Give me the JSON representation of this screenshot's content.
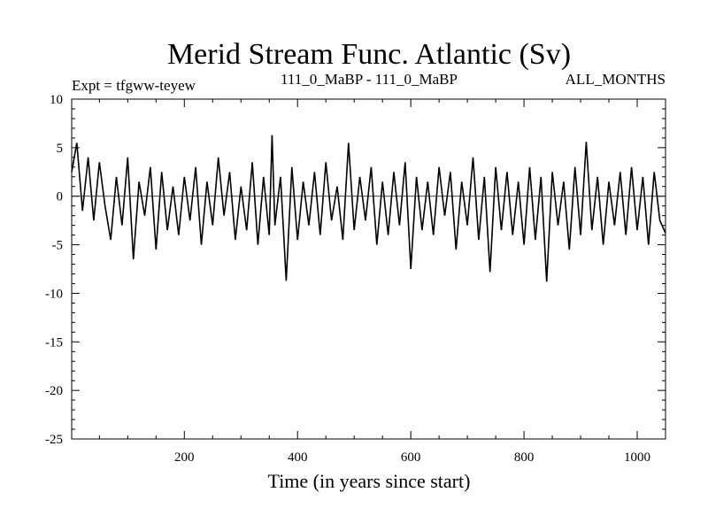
{
  "chart_data": {
    "type": "line",
    "title": "Merid Stream Func. Atlantic (Sv)",
    "subtitle_left": "Expt = tfgww-teyew",
    "subtitle_center": "111_0_MaBP - 111_0_MaBP",
    "subtitle_right": "ALL_MONTHS",
    "xlabel": "Time (in years since start)",
    "ylabel": "",
    "xlim": [
      1,
      1050
    ],
    "ylim": [
      -25,
      10
    ],
    "x_ticks": [
      200,
      400,
      600,
      800,
      1000
    ],
    "y_ticks": [
      10,
      5,
      0,
      -5,
      -10,
      -15,
      -20,
      -25
    ],
    "zero_line": true,
    "grid": false,
    "series": [
      {
        "color": "#000000",
        "x": [
          1,
          10,
          20,
          30,
          40,
          50,
          60,
          70,
          80,
          90,
          100,
          110,
          120,
          130,
          140,
          150,
          160,
          170,
          180,
          190,
          200,
          210,
          220,
          230,
          240,
          250,
          260,
          270,
          280,
          290,
          300,
          310,
          320,
          330,
          340,
          350,
          355,
          360,
          370,
          380,
          390,
          400,
          410,
          420,
          430,
          440,
          450,
          460,
          470,
          480,
          490,
          500,
          510,
          520,
          530,
          540,
          550,
          560,
          570,
          580,
          590,
          600,
          610,
          620,
          630,
          640,
          650,
          660,
          670,
          680,
          690,
          700,
          710,
          720,
          730,
          740,
          750,
          760,
          770,
          780,
          790,
          800,
          810,
          820,
          830,
          840,
          850,
          860,
          870,
          880,
          890,
          900,
          910,
          920,
          930,
          940,
          950,
          960,
          970,
          980,
          990,
          1000,
          1010,
          1020,
          1030,
          1040,
          1050
        ],
        "values": [
          2.5,
          5.5,
          -1.5,
          4.0,
          -2.5,
          3.5,
          -1.0,
          -4.5,
          2.0,
          -3.0,
          4.0,
          -6.5,
          1.5,
          -2.0,
          3.0,
          -5.5,
          2.5,
          -3.5,
          1.0,
          -4.0,
          2.0,
          -2.5,
          3.0,
          -5.0,
          1.5,
          -3.0,
          4.0,
          -2.0,
          2.5,
          -4.5,
          1.0,
          -3.5,
          3.5,
          -5.0,
          2.0,
          -4.0,
          6.3,
          -3.0,
          2.0,
          -8.7,
          3.0,
          -4.5,
          1.5,
          -3.0,
          2.5,
          -4.0,
          3.5,
          -2.5,
          1.0,
          -4.5,
          5.5,
          -3.5,
          2.0,
          -2.5,
          3.0,
          -5.0,
          1.5,
          -4.0,
          2.5,
          -3.0,
          3.5,
          -7.5,
          2.0,
          -3.5,
          1.5,
          -4.0,
          3.0,
          -2.0,
          2.5,
          -5.5,
          1.5,
          -3.0,
          4.0,
          -4.5,
          2.0,
          -7.8,
          3.0,
          -3.5,
          2.5,
          -4.0,
          1.5,
          -5.0,
          3.0,
          -4.5,
          2.0,
          -8.8,
          2.5,
          -3.0,
          1.5,
          -5.5,
          3.0,
          -4.0,
          5.6,
          -3.5,
          2.0,
          -5.0,
          1.5,
          -3.0,
          2.5,
          -4.0,
          3.0,
          -3.5,
          2.0,
          -5.0,
          2.5,
          -2.5,
          -3.8
        ]
      }
    ]
  }
}
